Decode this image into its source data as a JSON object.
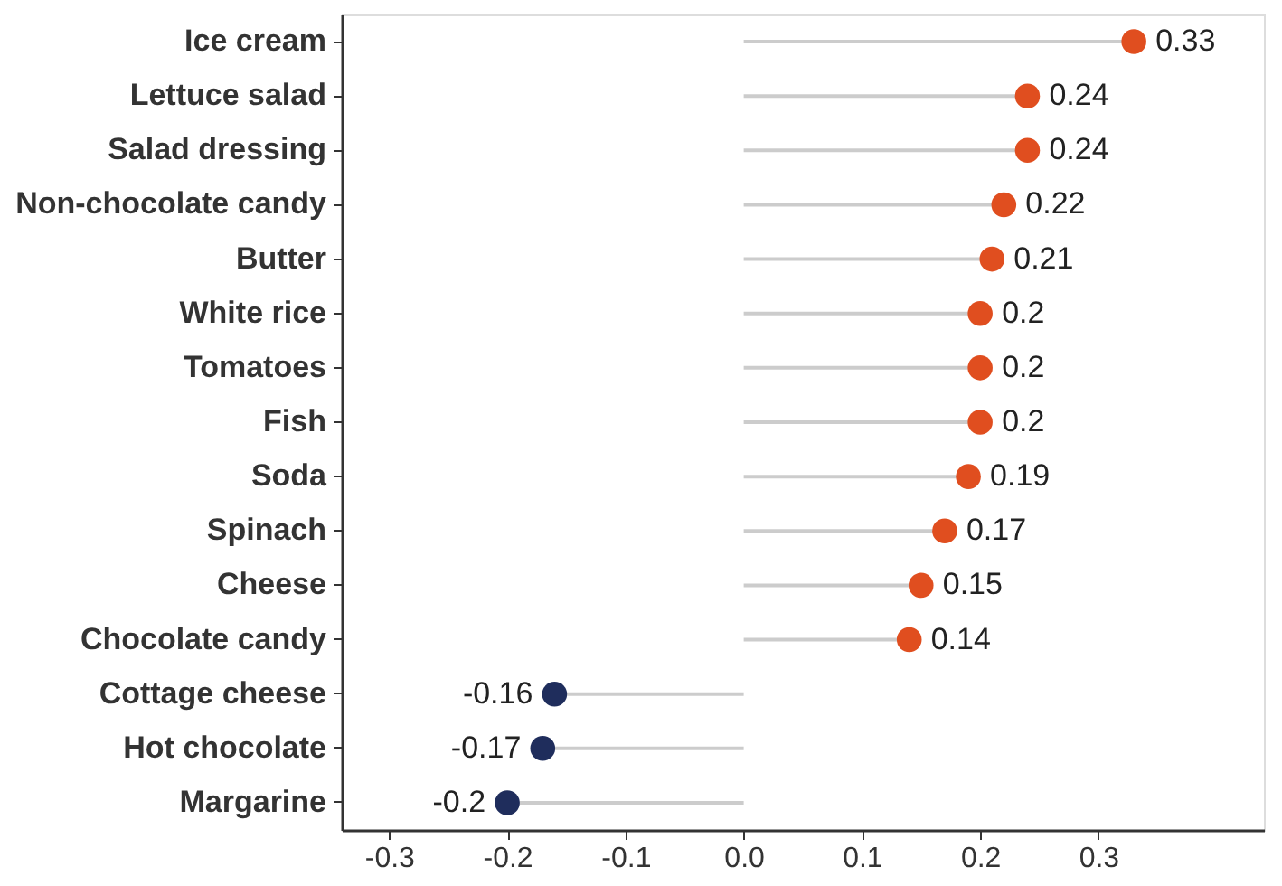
{
  "chart_data": {
    "type": "lollipop",
    "orientation": "horizontal",
    "categories": [
      "Ice cream",
      "Lettuce salad",
      "Salad dressing",
      "Non-chocolate candy",
      "Butter",
      "White rice",
      "Tomatoes",
      "Fish",
      "Soda",
      "Spinach",
      "Cheese",
      "Chocolate candy",
      "Cottage cheese",
      "Hot chocolate",
      "Margarine"
    ],
    "values": [
      0.33,
      0.24,
      0.24,
      0.22,
      0.21,
      0.2,
      0.2,
      0.2,
      0.19,
      0.17,
      0.15,
      0.14,
      -0.16,
      -0.17,
      -0.2
    ],
    "colors": [
      "#e04e1f",
      "#e04e1f",
      "#e04e1f",
      "#e04e1f",
      "#e04e1f",
      "#e04e1f",
      "#e04e1f",
      "#e04e1f",
      "#e04e1f",
      "#e04e1f",
      "#e04e1f",
      "#e04e1f",
      "#1f2d5c",
      "#1f2d5c",
      "#1f2d5c"
    ],
    "data_labels": true,
    "xlim": [
      -0.34,
      0.44
    ],
    "xticks": [
      -0.3,
      -0.2,
      -0.1,
      {
        "value": 0,
        "label": "0.0"
      },
      0.1,
      0.2,
      0.3
    ],
    "grid": false
  }
}
